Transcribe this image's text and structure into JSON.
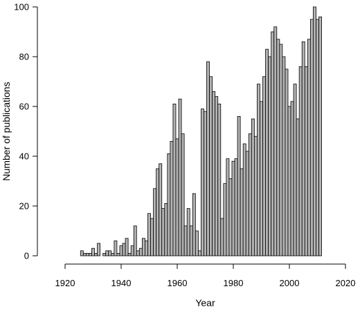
{
  "chart_data": {
    "type": "bar",
    "title": "",
    "xlabel": "Year",
    "ylabel": "Number of publications",
    "xlim": [
      1920,
      2020
    ],
    "ylim": [
      0,
      100
    ],
    "xticks": [
      1920,
      1940,
      1960,
      1980,
      2000,
      2020
    ],
    "yticks": [
      0,
      20,
      40,
      60,
      80,
      100
    ],
    "grid": false,
    "legend": "none",
    "bar_color": "#b3b3b3",
    "edge_color": "#000000",
    "x": [
      1926,
      1927,
      1928,
      1929,
      1930,
      1931,
      1932,
      1933,
      1934,
      1935,
      1936,
      1937,
      1938,
      1939,
      1940,
      1941,
      1942,
      1943,
      1944,
      1945,
      1946,
      1947,
      1948,
      1949,
      1950,
      1951,
      1952,
      1953,
      1954,
      1955,
      1956,
      1957,
      1958,
      1959,
      1960,
      1961,
      1962,
      1963,
      1964,
      1965,
      1966,
      1967,
      1968,
      1969,
      1970,
      1971,
      1972,
      1973,
      1974,
      1975,
      1976,
      1977,
      1978,
      1979,
      1980,
      1981,
      1982,
      1983,
      1984,
      1985,
      1986,
      1987,
      1988,
      1989,
      1990,
      1991,
      1992,
      1993,
      1994,
      1995,
      1996,
      1997,
      1998,
      1999,
      2000,
      2001,
      2002,
      2003,
      2004,
      2005,
      2006,
      2007,
      2008,
      2009,
      2010,
      2011
    ],
    "values": [
      2,
      1,
      1,
      1,
      3,
      1,
      5,
      0,
      1,
      2,
      2,
      1,
      6,
      1,
      4,
      5,
      7,
      1,
      4,
      12,
      2,
      3,
      7,
      6,
      17,
      15,
      27,
      35,
      37,
      19,
      21,
      41,
      46,
      61,
      47,
      63,
      49,
      12,
      19,
      12,
      25,
      10,
      2,
      59,
      58,
      78,
      72,
      66,
      64,
      61,
      15,
      29,
      39,
      31,
      38,
      39,
      56,
      35,
      45,
      42,
      49,
      55,
      48,
      69,
      62,
      72,
      83,
      80,
      90,
      92,
      87,
      85,
      80,
      75,
      60,
      62,
      69,
      55,
      76,
      86,
      76,
      87,
      95,
      100,
      95,
      96
    ]
  }
}
